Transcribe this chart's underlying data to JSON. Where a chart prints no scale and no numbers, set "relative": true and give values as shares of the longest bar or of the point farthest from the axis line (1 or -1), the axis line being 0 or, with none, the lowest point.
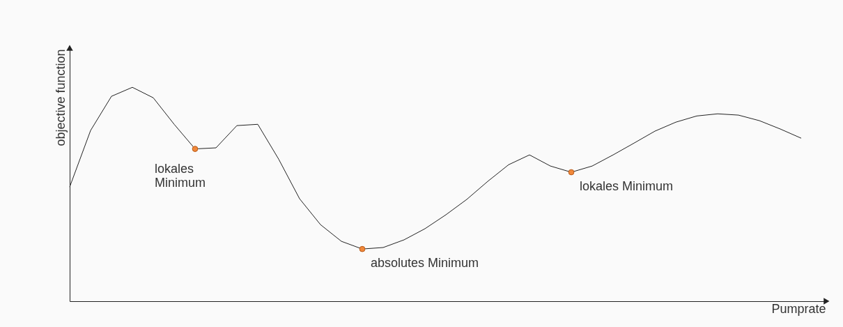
{
  "chart_data": {
    "type": "line",
    "relative": true,
    "xlabel": "Pumprate",
    "ylabel": "objective function",
    "tick_labels": false,
    "grid": false,
    "legend": false,
    "categories": [
      null,
      null,
      null,
      null,
      null,
      null,
      null,
      null,
      null,
      null,
      null,
      null,
      null,
      null,
      null,
      null,
      null,
      null,
      null,
      null,
      null,
      null,
      null,
      null,
      null,
      null,
      null,
      null,
      null,
      null,
      null,
      null,
      null,
      null,
      null,
      null
    ],
    "series": [
      {
        "type": "line",
        "color": "#222222",
        "values": [
          0.534,
          0.798,
          0.958,
          1.0,
          0.951,
          0.827,
          0.712,
          0.717,
          0.821,
          0.827,
          0.664,
          0.479,
          0.358,
          0.28,
          0.244,
          0.251,
          0.287,
          0.339,
          0.404,
          0.476,
          0.56,
          0.638,
          0.684,
          0.632,
          0.603,
          0.632,
          0.684,
          0.739,
          0.795,
          0.837,
          0.866,
          0.876,
          0.87,
          0.844,
          0.805,
          0.762
        ]
      }
    ],
    "annotations": [
      "lokales\nMinimum",
      "absolutes Minimum",
      "lokales Minimum"
    ]
  }
}
